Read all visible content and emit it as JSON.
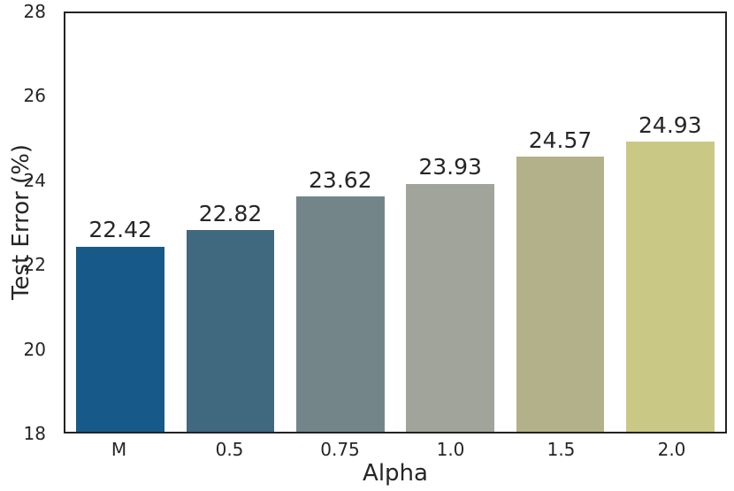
{
  "chart_data": {
    "type": "bar",
    "title": "",
    "xlabel": "Alpha",
    "ylabel": "Test Error (%)",
    "categories": [
      "M",
      "0.5",
      "0.75",
      "1.0",
      "1.5",
      "2.0"
    ],
    "values": [
      22.42,
      22.82,
      23.62,
      23.93,
      24.57,
      24.93
    ],
    "bar_labels": [
      "22.42",
      "22.82",
      "23.62",
      "23.93",
      "24.57",
      "24.93"
    ],
    "bar_colors": [
      "#175a89",
      "#40687e",
      "#74858a",
      "#a1a49a",
      "#b2b18a",
      "#c9c985"
    ],
    "ylim": [
      18,
      28
    ],
    "yticks": [
      "18",
      "20",
      "22",
      "24",
      "26",
      "28"
    ],
    "grid": false,
    "legend": null,
    "spine_color": "#222222",
    "text_color": "#262626"
  }
}
